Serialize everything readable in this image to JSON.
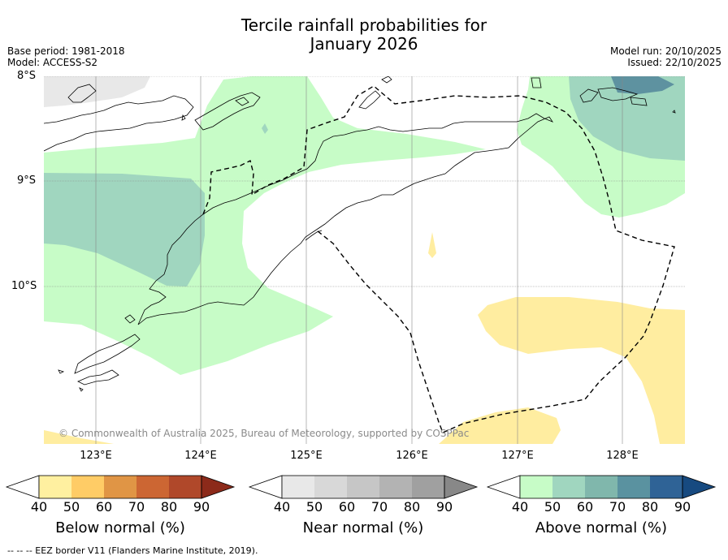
{
  "title_line1": "Tercile rainfall probabilities for",
  "title_line2": "January 2026",
  "meta": {
    "base_period": "Base period: 1981-2018",
    "model": "Model: ACCESS-S2",
    "model_run": "Model run: 20/10/2025",
    "issued": "Issued: 22/10/2025"
  },
  "map": {
    "lat_labels": [
      "8°S",
      "9°S",
      "10°S"
    ],
    "lon_labels": [
      "123°E",
      "124°E",
      "125°E",
      "126°E",
      "127°E",
      "128°E"
    ],
    "copyright": "© Commonwealth of Australia 2025, Bureau of Meteorology, supported by COSPPac",
    "colors": {
      "below_50": "#ffeda0",
      "near_40": "#e8e8e8",
      "above_40": "#c7fcc7",
      "above_50": "#a0d6bf",
      "above_60": "#80b7ac",
      "above_70": "#5e92a0"
    }
  },
  "colorbars": [
    {
      "label": "Below normal (%)",
      "ticks": [
        "40",
        "50",
        "60",
        "70",
        "80",
        "90"
      ],
      "colors": [
        "#ffffff",
        "#fff0a0",
        "#ffcc66",
        "#e09545",
        "#cc6633",
        "#b0482a",
        "#8c2a1a"
      ]
    },
    {
      "label": "Near normal (%)",
      "ticks": [
        "40",
        "50",
        "60",
        "70",
        "80",
        "90"
      ],
      "colors": [
        "#ffffff",
        "#e8e8e8",
        "#d8d8d8",
        "#c6c6c6",
        "#b3b3b3",
        "#a0a0a0",
        "#888888"
      ]
    },
    {
      "label": "Above normal (%)",
      "ticks": [
        "40",
        "50",
        "60",
        "70",
        "80",
        "90"
      ],
      "colors": [
        "#ffffff",
        "#c7fcc7",
        "#a0d6bf",
        "#80b7ac",
        "#5a92a0",
        "#2f6396",
        "#174a80"
      ]
    }
  ],
  "footnote": "--  --  -- EEZ border V11 (Flanders Marine Institute, 2019)."
}
